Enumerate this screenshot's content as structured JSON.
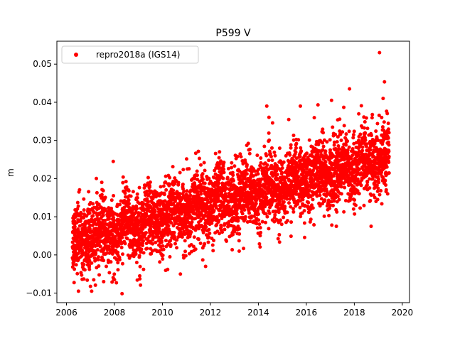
{
  "chart_data": {
    "type": "scatter",
    "title": "P599 V",
    "xlabel": "",
    "ylabel": "m",
    "xlim": [
      2005.6,
      2020.3
    ],
    "ylim": [
      -0.0125,
      0.056
    ],
    "x_ticks": [
      2006,
      2008,
      2010,
      2012,
      2014,
      2016,
      2018,
      2020
    ],
    "x_tick_labels": [
      "2006",
      "2008",
      "2010",
      "2012",
      "2014",
      "2016",
      "2018",
      "2020"
    ],
    "y_ticks": [
      -0.01,
      0.0,
      0.01,
      0.02,
      0.03,
      0.04,
      0.05
    ],
    "y_tick_labels": [
      "−0.01",
      "0.00",
      "0.01",
      "0.02",
      "0.03",
      "0.04",
      "0.05"
    ],
    "grid": false,
    "legend_position": "upper-left",
    "series": [
      {
        "name": "repro2018a (IGS14)",
        "color": "#ff0000",
        "marker": "circle",
        "x_range": [
          2006.25,
          2019.45
        ],
        "trend": {
          "slope_m_per_year": 0.0017,
          "intercept_at_2006": 0.003
        },
        "noise_std_m": 0.0045,
        "outliers": [
          {
            "x": 2019.05,
            "y": 0.053
          },
          {
            "x": 2017.8,
            "y": 0.0435
          },
          {
            "x": 2019.2,
            "y": 0.041
          },
          {
            "x": 2017.05,
            "y": 0.0405
          },
          {
            "x": 2014.35,
            "y": 0.039
          },
          {
            "x": 2015.75,
            "y": 0.039
          },
          {
            "x": 2007.95,
            "y": 0.0245
          },
          {
            "x": 2006.5,
            "y": -0.0095
          },
          {
            "x": 2007.05,
            "y": -0.0095
          },
          {
            "x": 2007.55,
            "y": -0.007
          },
          {
            "x": 2010.75,
            "y": -0.005
          },
          {
            "x": 2011.8,
            "y": -0.003
          },
          {
            "x": 2013.2,
            "y": 0.001
          },
          {
            "x": 2017.25,
            "y": 0.0075
          },
          {
            "x": 2018.7,
            "y": 0.0075
          }
        ]
      }
    ]
  }
}
